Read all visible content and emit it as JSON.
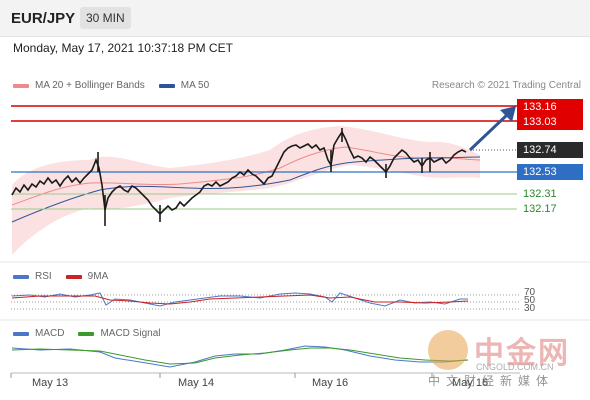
{
  "header": {
    "symbol": "EUR/JPY",
    "timeframe": "30 MIN"
  },
  "datetime": "Monday, May 17, 2021 10:37:18 PM CET",
  "legend_main": [
    {
      "label": "MA 20 + Bollinger Bands",
      "color": "#f08a8a"
    },
    {
      "label": "MA 50",
      "color": "#2f5597"
    }
  ],
  "credit": "Research © 2021 Trading Central",
  "levels": [
    {
      "value": "133.16",
      "style": "red-box"
    },
    {
      "value": "133.03",
      "style": "red-box"
    },
    {
      "value": "132.74",
      "style": "dark-box"
    },
    {
      "value": "132.53",
      "style": "blue-box"
    },
    {
      "value": "132.31",
      "style": "green-text"
    },
    {
      "value": "132.17",
      "style": "green-text"
    }
  ],
  "rsi_legend": [
    {
      "label": "RSI",
      "color": "#4a78c8"
    },
    {
      "label": "9MA",
      "color": "#cc2222"
    }
  ],
  "rsi_levels": [
    "70",
    "50",
    "30"
  ],
  "macd_legend": [
    {
      "label": "MACD",
      "color": "#4a78c8"
    },
    {
      "label": "MACD Signal",
      "color": "#3a9a2a"
    }
  ],
  "x_labels": [
    "May 13",
    "May 14",
    "May 16",
    "May 16"
  ],
  "watermark": {
    "cn": "中金网",
    "domain": "CNGOLD.COM.CN",
    "sub": "中文财经新媒体"
  },
  "colors": {
    "up": "#1a1a1a",
    "down": "#1a1a1a",
    "resistance": "#d40000",
    "support": "#2e6fc4",
    "pivot": "#222222",
    "target": "#2a9a2a",
    "arrow": "#2f5597"
  },
  "chart_data": {
    "type": "line",
    "title": "EUR/JPY",
    "price_axis_levels": [
      133.16,
      133.03,
      132.74,
      132.53,
      132.31,
      132.17
    ],
    "x_labels": [
      "May 13",
      "May 14",
      "May 16",
      "May 16"
    ],
    "rsi_levels": [
      70,
      50,
      30
    ],
    "series": [
      {
        "name": "MA 20 + Bollinger Bands",
        "values": []
      },
      {
        "name": "MA 50",
        "values": []
      },
      {
        "name": "RSI",
        "values": []
      },
      {
        "name": "9MA",
        "values": []
      },
      {
        "name": "MACD",
        "values": []
      },
      {
        "name": "MACD Signal",
        "values": []
      }
    ]
  }
}
